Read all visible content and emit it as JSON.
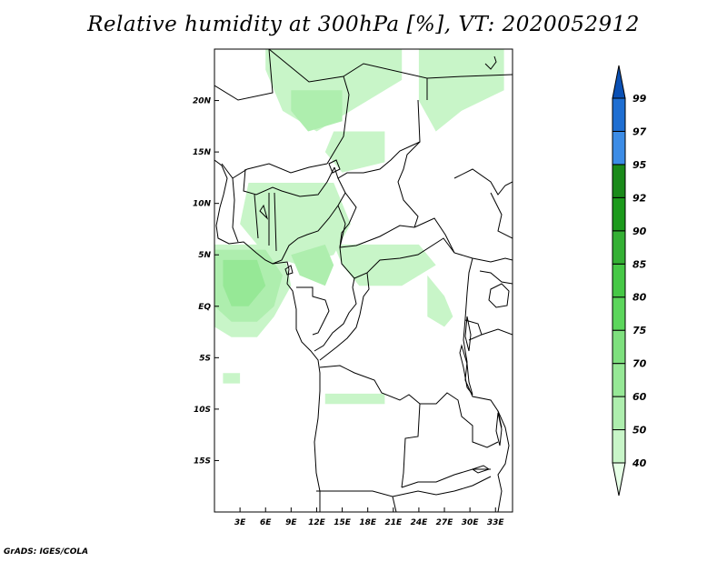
{
  "title": "Relative humidity at 300hPa [%], VT: 2020052912",
  "footer": "GrADS: IGES/COLA",
  "map": {
    "lon_range": [
      0,
      35
    ],
    "lat_range": [
      -20,
      25
    ],
    "lon_ticks": [
      {
        "value": 3,
        "label": "3E"
      },
      {
        "value": 6,
        "label": "6E"
      },
      {
        "value": 9,
        "label": "9E"
      },
      {
        "value": 12,
        "label": "12E"
      },
      {
        "value": 15,
        "label": "15E"
      },
      {
        "value": 18,
        "label": "18E"
      },
      {
        "value": 21,
        "label": "21E"
      },
      {
        "value": 24,
        "label": "24E"
      },
      {
        "value": 27,
        "label": "27E"
      },
      {
        "value": 30,
        "label": "30E"
      },
      {
        "value": 33,
        "label": "33E"
      }
    ],
    "lat_ticks": [
      {
        "value": 20,
        "label": "20N"
      },
      {
        "value": 15,
        "label": "15N"
      },
      {
        "value": 10,
        "label": "10N"
      },
      {
        "value": 5,
        "label": "5N"
      },
      {
        "value": 0,
        "label": "EQ"
      },
      {
        "value": -5,
        "label": "5S"
      },
      {
        "value": -10,
        "label": "10S"
      },
      {
        "value": -15,
        "label": "15S"
      }
    ]
  },
  "colorbar": {
    "levels": [
      "40",
      "50",
      "60",
      "70",
      "75",
      "80",
      "85",
      "90",
      "92",
      "95",
      "97",
      "99"
    ],
    "colors": [
      "#e6ffe6",
      "#c8f5c8",
      "#aeeeae",
      "#96e896",
      "#7ee07e",
      "#5cd65c",
      "#46c846",
      "#34b034",
      "#1c9a1c",
      "#1a8a1a",
      "#3c8ce6",
      "#1e6ed2",
      "#0a50b4"
    ]
  },
  "humidity_regions": [
    {
      "level": "40",
      "polygon": [
        [
          6,
          25
        ],
        [
          22,
          25
        ],
        [
          22,
          22
        ],
        [
          16,
          19
        ],
        [
          12,
          17
        ],
        [
          8,
          19
        ],
        [
          6,
          23
        ]
      ]
    },
    {
      "level": "40",
      "polygon": [
        [
          24,
          25
        ],
        [
          34,
          25
        ],
        [
          34,
          21
        ],
        [
          29,
          19
        ],
        [
          26,
          17
        ],
        [
          24,
          20
        ]
      ]
    },
    {
      "level": "40",
      "polygon": [
        [
          14,
          17
        ],
        [
          20,
          17
        ],
        [
          20,
          14
        ],
        [
          15,
          13
        ],
        [
          13,
          15
        ]
      ]
    },
    {
      "level": "40",
      "polygon": [
        [
          4,
          12
        ],
        [
          14,
          12
        ],
        [
          16,
          8
        ],
        [
          14,
          5
        ],
        [
          10,
          4
        ],
        [
          6,
          5
        ],
        [
          3,
          8
        ]
      ]
    },
    {
      "level": "40",
      "polygon": [
        [
          14,
          6
        ],
        [
          24,
          6
        ],
        [
          26,
          4
        ],
        [
          22,
          2
        ],
        [
          17,
          2
        ],
        [
          15,
          4
        ]
      ]
    },
    {
      "level": "40",
      "polygon": [
        [
          25,
          3
        ],
        [
          27,
          1
        ],
        [
          28,
          -1
        ],
        [
          27,
          -2
        ],
        [
          25,
          -1
        ]
      ]
    },
    {
      "level": "40",
      "polygon": [
        [
          0,
          6
        ],
        [
          8,
          6
        ],
        [
          9,
          2
        ],
        [
          7,
          -1
        ],
        [
          5,
          -3
        ],
        [
          2,
          -3
        ],
        [
          0,
          -2
        ]
      ]
    },
    {
      "level": "50",
      "polygon": [
        [
          0,
          5.5
        ],
        [
          6,
          5.5
        ],
        [
          8,
          3
        ],
        [
          7,
          0
        ],
        [
          5,
          -1.5
        ],
        [
          2,
          -1.5
        ],
        [
          0,
          0
        ]
      ]
    },
    {
      "level": "50",
      "polygon": [
        [
          9,
          21
        ],
        [
          15,
          21
        ],
        [
          15,
          18
        ],
        [
          11,
          17
        ],
        [
          9,
          19
        ]
      ]
    },
    {
      "level": "50",
      "polygon": [
        [
          9,
          5
        ],
        [
          13,
          6
        ],
        [
          14,
          4
        ],
        [
          13,
          2
        ],
        [
          10,
          3
        ]
      ]
    },
    {
      "level": "60",
      "polygon": [
        [
          1,
          4.5
        ],
        [
          5,
          4.5
        ],
        [
          6,
          2
        ],
        [
          4,
          0
        ],
        [
          2,
          0
        ],
        [
          1,
          2
        ]
      ]
    },
    {
      "level": "40",
      "polygon": [
        [
          1,
          -6.5
        ],
        [
          3,
          -6.5
        ],
        [
          3,
          -7.5
        ],
        [
          1,
          -7.5
        ]
      ]
    },
    {
      "level": "40",
      "polygon": [
        [
          13,
          -8.5
        ],
        [
          20,
          -8.5
        ],
        [
          20,
          -9.5
        ],
        [
          13,
          -9.5
        ]
      ]
    }
  ]
}
